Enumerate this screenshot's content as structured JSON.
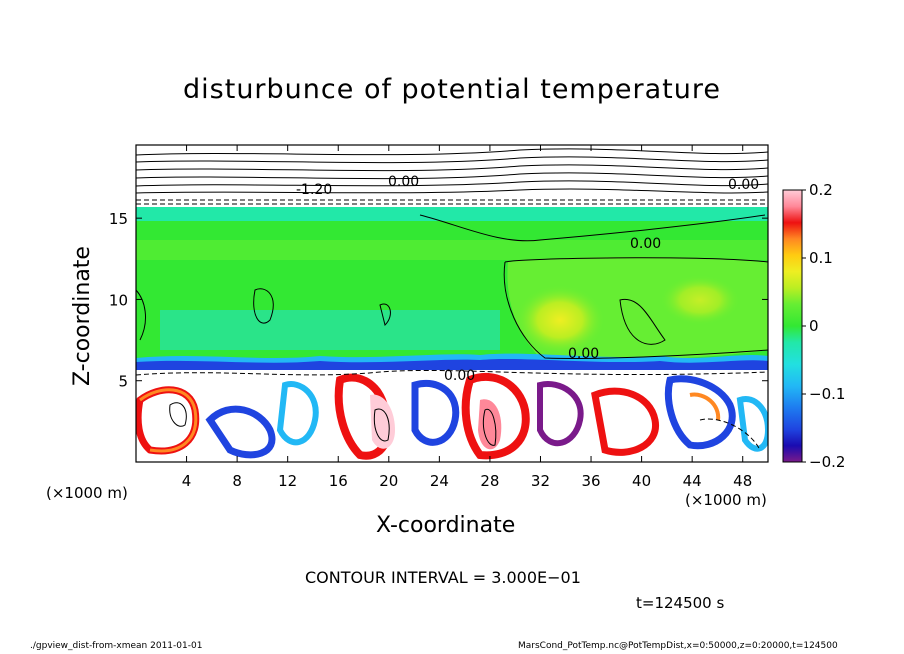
{
  "chart_data": {
    "type": "heatmap",
    "title": "disturbunce of potential temperature",
    "xlabel": "X-coordinate",
    "ylabel": "Z-coordinate",
    "x_unit_label": "(×1000 m)",
    "x_ticks": [
      "4",
      "8",
      "12",
      "16",
      "20",
      "24",
      "28",
      "32",
      "36",
      "40",
      "44",
      "48"
    ],
    "x_tick_values": [
      4,
      8,
      12,
      16,
      20,
      24,
      28,
      32,
      36,
      40,
      44,
      48
    ],
    "xlim": [
      0,
      50
    ],
    "y_ticks": [
      "5",
      "10",
      "15"
    ],
    "y_tick_values": [
      5,
      10,
      15
    ],
    "ylim": [
      0,
      19.5
    ],
    "colorbar": {
      "ticks": [
        "0.2",
        "0.1",
        "0",
        "−0.1",
        "−0.2"
      ],
      "tick_values": [
        0.2,
        0.1,
        0,
        -0.1,
        -0.2
      ],
      "range": [
        -0.2,
        0.2
      ],
      "colors": [
        "#7a1a8a",
        "#1a0bb0",
        "#1f44e0",
        "#1e7cf0",
        "#22b8f5",
        "#22e0e0",
        "#22e8a8",
        "#33e833",
        "#66ee33",
        "#bbee22",
        "#eeee22",
        "#ffcc11",
        "#ff8822",
        "#ff4411",
        "#ee1111",
        "#ff8899",
        "#ffccd8"
      ]
    },
    "contour_labels": [
      "0.00",
      "0.00",
      "-1.20",
      "0.00",
      "0.00",
      "0.00"
    ],
    "contour_interval": "3.000E-01"
  },
  "annotations": {
    "contour_interval_text": "CONTOUR INTERVAL = 3.000E−01",
    "time_text": "t=124500  s",
    "footer_left": "./gpview_dist-from-xmean   2011-01-01",
    "footer_right": "MarsCond_PotTemp.nc@PotTempDist,x=0:50000,z=0:20000,t=124500"
  },
  "colors": {
    "background": "#00e87a",
    "neutral": "#33e833",
    "upper_band": "#22e0e0",
    "warm_blob": "#bbee22",
    "inversion": "#1f44e0"
  }
}
